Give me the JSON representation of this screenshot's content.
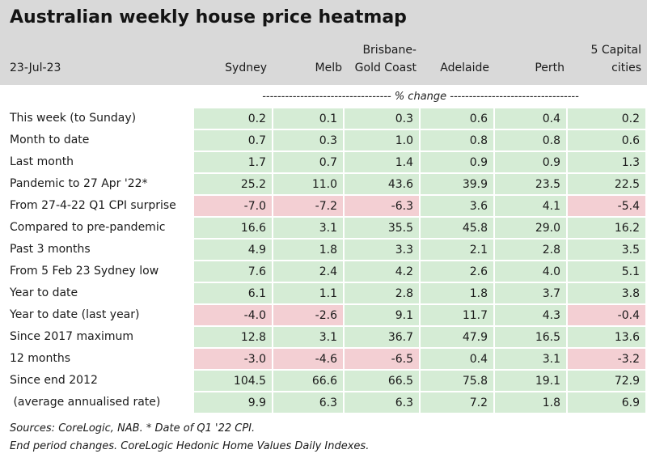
{
  "colors": {
    "header_bg": "#d9d9d9",
    "positive": "#d5ecd5",
    "negative": "#f3cfd3"
  },
  "chart_data": {
    "type": "heatmap",
    "title": "Australian weekly house price heatmap",
    "date": "23-Jul-23",
    "subheader": "---------------------------------- % change ----------------------------------",
    "columns": [
      {
        "id": "sydney",
        "lines": [
          "",
          "Sydney"
        ]
      },
      {
        "id": "melb",
        "lines": [
          "",
          "Melb"
        ]
      },
      {
        "id": "brisbane",
        "lines": [
          "Brisbane-",
          "Gold Coast"
        ]
      },
      {
        "id": "adelaide",
        "lines": [
          "",
          "Adelaide"
        ]
      },
      {
        "id": "perth",
        "lines": [
          "",
          "Perth"
        ]
      },
      {
        "id": "capitals",
        "lines": [
          "5 Capital",
          "cities"
        ]
      }
    ],
    "rows": [
      {
        "label": "This week (to Sunday)",
        "values": [
          "0.2",
          "0.1",
          "0.3",
          "0.6",
          "0.4",
          "0.2"
        ]
      },
      {
        "label": "Month to date",
        "values": [
          "0.7",
          "0.3",
          "1.0",
          "0.8",
          "0.8",
          "0.6"
        ]
      },
      {
        "label": "Last month",
        "values": [
          "1.7",
          "0.7",
          "1.4",
          "0.9",
          "0.9",
          "1.3"
        ]
      },
      {
        "label": "Pandemic to 27 Apr '22*",
        "values": [
          "25.2",
          "11.0",
          "43.6",
          "39.9",
          "23.5",
          "22.5"
        ]
      },
      {
        "label": "From 27-4-22 Q1 CPI surprise",
        "values": [
          "-7.0",
          "-7.2",
          "-6.3",
          "3.6",
          "4.1",
          "-5.4"
        ]
      },
      {
        "label": "Compared to pre-pandemic",
        "values": [
          "16.6",
          "3.1",
          "35.5",
          "45.8",
          "29.0",
          "16.2"
        ]
      },
      {
        "label": "Past 3 months",
        "values": [
          "4.9",
          "1.8",
          "3.3",
          "2.1",
          "2.8",
          "3.5"
        ]
      },
      {
        "label": "From 5 Feb 23 Sydney low",
        "values": [
          "7.6",
          "2.4",
          "4.2",
          "2.6",
          "4.0",
          "5.1"
        ]
      },
      {
        "label": "Year to date",
        "values": [
          "6.1",
          "1.1",
          "2.8",
          "1.8",
          "3.7",
          "3.8"
        ]
      },
      {
        "label": "Year to date (last year)",
        "values": [
          "-4.0",
          "-2.6",
          "9.1",
          "11.7",
          "4.3",
          "-0.4"
        ]
      },
      {
        "label": "Since 2017 maximum",
        "values": [
          "12.8",
          "3.1",
          "36.7",
          "47.9",
          "16.5",
          "13.6"
        ]
      },
      {
        "label": "12 months",
        "values": [
          "-3.0",
          "-4.6",
          "-6.5",
          "0.4",
          "3.1",
          "-3.2"
        ]
      },
      {
        "label": "Since end 2012",
        "values": [
          "104.5",
          "66.6",
          "66.5",
          "75.8",
          "19.1",
          "72.9"
        ]
      },
      {
        "label": " (average annualised rate)",
        "values": [
          "9.9",
          "6.3",
          "6.3",
          "7.2",
          "1.8",
          "6.9"
        ]
      }
    ]
  },
  "footnotes": [
    "Sources: CoreLogic, NAB. * Date of Q1 '22 CPI.",
    "End period changes. CoreLogic Hedonic Home Values Daily Indexes."
  ]
}
